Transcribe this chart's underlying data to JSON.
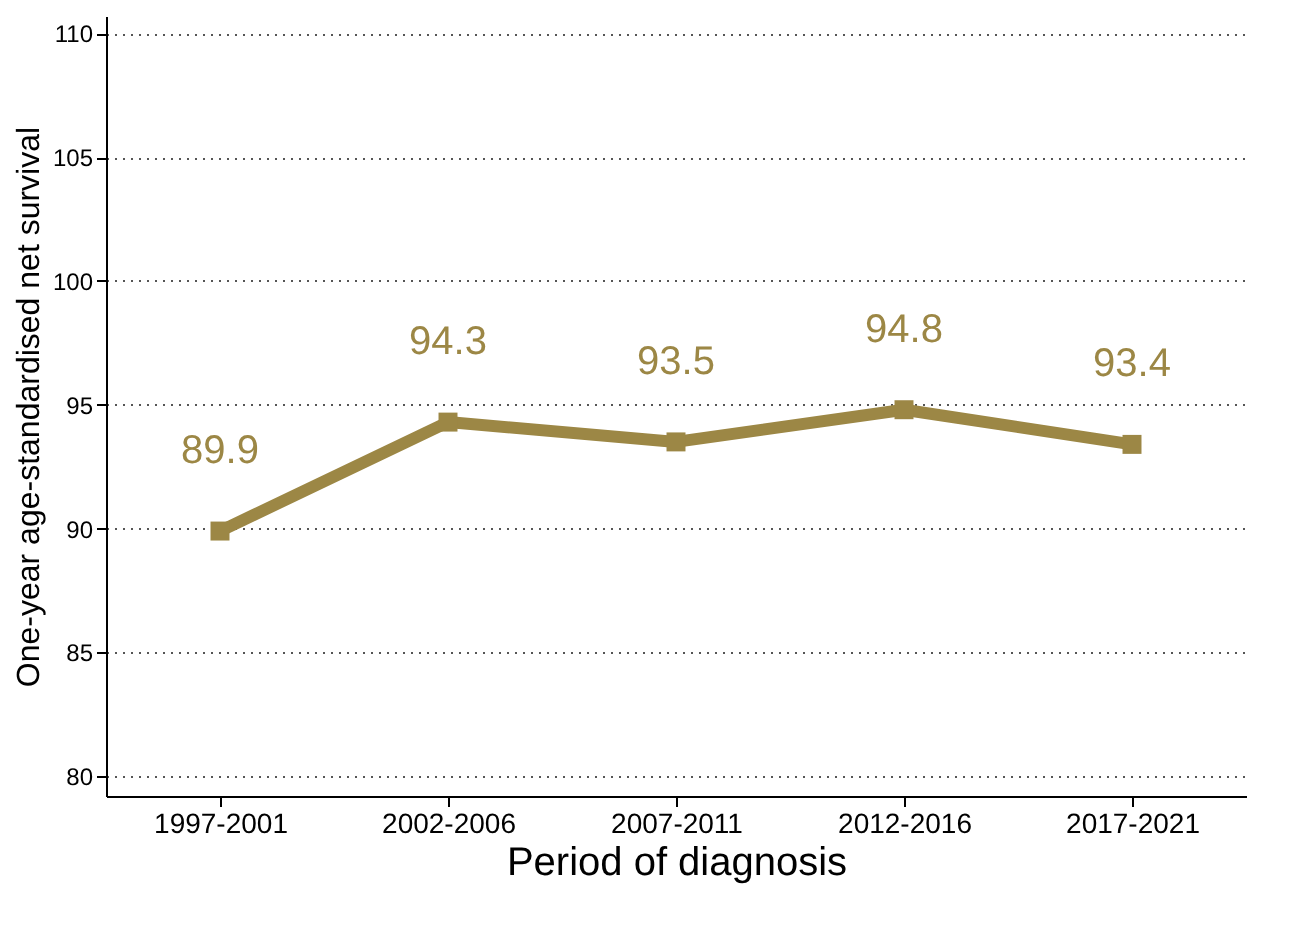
{
  "chart_data": {
    "type": "line",
    "xlabel": "Period of diagnosis",
    "ylabel": "One-year age-standardised net survival",
    "categories": [
      "1997-2001",
      "2002-2006",
      "2007-2011",
      "2012-2016",
      "2017-2021"
    ],
    "series": [
      {
        "color": "#9c8745",
        "values": [
          89.9,
          94.3,
          93.5,
          94.8,
          93.4
        ]
      }
    ],
    "ylim": [
      79.2,
      110.7
    ],
    "yticks": [
      80,
      85,
      90,
      95,
      100,
      105,
      110
    ],
    "grid": "y",
    "marker": "square",
    "line_style": "solid",
    "data_labels": true
  }
}
